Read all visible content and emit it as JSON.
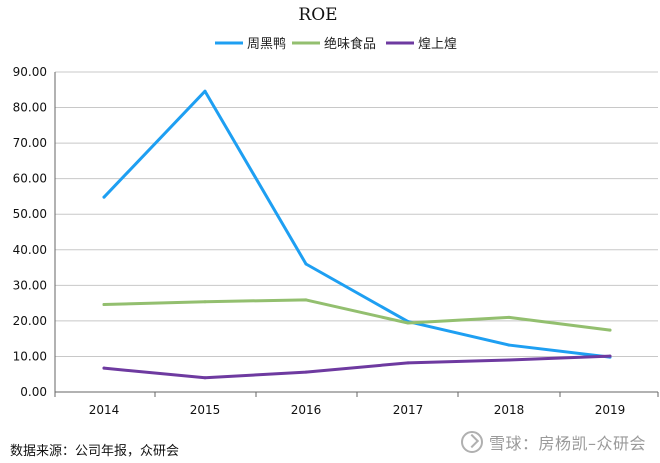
{
  "chart_data": {
    "type": "line",
    "title": "ROE",
    "xlabel": "",
    "ylabel": "",
    "ylim": [
      0,
      90
    ],
    "yticks": [
      "0.00",
      "10.00",
      "20.00",
      "30.00",
      "40.00",
      "50.00",
      "60.00",
      "70.00",
      "80.00",
      "90.00"
    ],
    "ytick_values": [
      0,
      10,
      20,
      30,
      40,
      50,
      60,
      70,
      80,
      90
    ],
    "categories": [
      "2014",
      "2015",
      "2016",
      "2017",
      "2018",
      "2019"
    ],
    "grid": true,
    "legend_position": "top",
    "series": [
      {
        "name": "周黑鸭",
        "color": "#1e9ff2",
        "values": [
          54.8,
          84.6,
          36.0,
          19.8,
          13.2,
          9.8
        ]
      },
      {
        "name": "绝味食品",
        "color": "#93bf6f",
        "values": [
          24.6,
          25.4,
          25.9,
          19.4,
          21.0,
          17.4
        ]
      },
      {
        "name": "煌上煌",
        "color": "#6e3aa0",
        "values": [
          6.7,
          4.0,
          5.6,
          8.2,
          9.0,
          10.1
        ]
      }
    ]
  },
  "footer": {
    "source": "数据来源：公司年报，众研会",
    "watermark": "雪球：房杨凯–众研会"
  }
}
